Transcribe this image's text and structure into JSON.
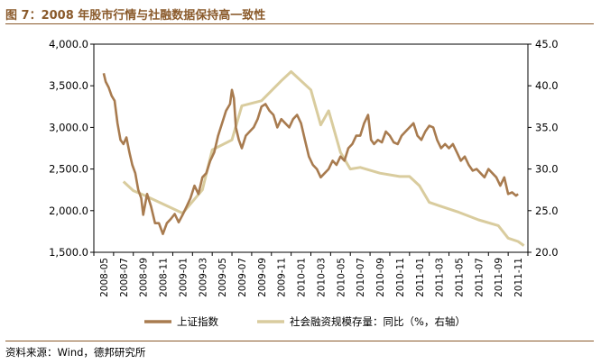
{
  "title": "图 7：2008 年股市行情与社融数据保持高一致性",
  "source": "资料来源：Wind，德邦研究所",
  "colors": {
    "shanghai": "#a87b4f",
    "social": "#d9cc9e",
    "accent": "#8a5a2b"
  },
  "chart_data": {
    "type": "line",
    "title": "图 7：2008 年股市行情与社融数据保持高一致性",
    "x_categories": [
      "2008-05",
      "2008-07",
      "2008-09",
      "2008-11",
      "2009-01",
      "2009-03",
      "2009-05",
      "2009-07",
      "2009-09",
      "2009-11",
      "2010-01",
      "2010-03",
      "2010-05",
      "2010-07",
      "2010-09",
      "2010-11",
      "2011-01",
      "2011-03",
      "2011-05",
      "2011-07",
      "2011-09",
      "2011-11"
    ],
    "left_axis": {
      "min": 1500,
      "max": 4000,
      "ticks": [
        "1,500.0",
        "2,000.0",
        "2,500.0",
        "3,000.0",
        "3,500.0",
        "4,000.0"
      ]
    },
    "right_axis": {
      "min": 20,
      "max": 45,
      "ticks": [
        "20.0",
        "25.0",
        "30.0",
        "35.0",
        "40.0",
        "45.0"
      ]
    },
    "series": [
      {
        "name": "上证指数",
        "axis": "left",
        "points": [
          [
            0,
            3650
          ],
          [
            0.1,
            3550
          ],
          [
            0.25,
            3480
          ],
          [
            0.4,
            3380
          ],
          [
            0.55,
            3320
          ],
          [
            0.7,
            3050
          ],
          [
            0.85,
            2850
          ],
          [
            1.0,
            2800
          ],
          [
            1.15,
            2880
          ],
          [
            1.3,
            2700
          ],
          [
            1.45,
            2550
          ],
          [
            1.6,
            2450
          ],
          [
            1.75,
            2250
          ],
          [
            1.9,
            2150
          ],
          [
            2.0,
            1950
          ],
          [
            2.2,
            2200
          ],
          [
            2.4,
            2050
          ],
          [
            2.6,
            1850
          ],
          [
            2.8,
            1850
          ],
          [
            3.0,
            1720
          ],
          [
            3.2,
            1850
          ],
          [
            3.4,
            1900
          ],
          [
            3.6,
            1960
          ],
          [
            3.8,
            1860
          ],
          [
            4.0,
            1950
          ],
          [
            4.2,
            2050
          ],
          [
            4.4,
            2150
          ],
          [
            4.6,
            2300
          ],
          [
            4.8,
            2200
          ],
          [
            5.0,
            2400
          ],
          [
            5.2,
            2450
          ],
          [
            5.4,
            2600
          ],
          [
            5.6,
            2700
          ],
          [
            5.8,
            2900
          ],
          [
            6.0,
            3050
          ],
          [
            6.2,
            3200
          ],
          [
            6.4,
            3280
          ],
          [
            6.5,
            3450
          ],
          [
            6.6,
            3350
          ],
          [
            6.7,
            3000
          ],
          [
            6.85,
            2850
          ],
          [
            7.0,
            2750
          ],
          [
            7.2,
            2900
          ],
          [
            7.4,
            2950
          ],
          [
            7.6,
            3000
          ],
          [
            7.8,
            3100
          ],
          [
            8.0,
            3250
          ],
          [
            8.2,
            3280
          ],
          [
            8.4,
            3200
          ],
          [
            8.6,
            3150
          ],
          [
            8.8,
            3000
          ],
          [
            9.0,
            3100
          ],
          [
            9.2,
            3050
          ],
          [
            9.4,
            3000
          ],
          [
            9.6,
            3100
          ],
          [
            9.8,
            3150
          ],
          [
            10.0,
            3050
          ],
          [
            10.2,
            2850
          ],
          [
            10.4,
            2650
          ],
          [
            10.6,
            2550
          ],
          [
            10.8,
            2500
          ],
          [
            11.0,
            2400
          ],
          [
            11.2,
            2450
          ],
          [
            11.4,
            2500
          ],
          [
            11.6,
            2600
          ],
          [
            11.8,
            2550
          ],
          [
            12.0,
            2650
          ],
          [
            12.2,
            2600
          ],
          [
            12.4,
            2750
          ],
          [
            12.6,
            2800
          ],
          [
            12.8,
            2900
          ],
          [
            13.0,
            2900
          ],
          [
            13.2,
            3050
          ],
          [
            13.4,
            3150
          ],
          [
            13.55,
            2850
          ],
          [
            13.7,
            2800
          ],
          [
            13.9,
            2850
          ],
          [
            14.1,
            2820
          ],
          [
            14.3,
            2950
          ],
          [
            14.5,
            2900
          ],
          [
            14.7,
            2820
          ],
          [
            14.9,
            2800
          ],
          [
            15.1,
            2900
          ],
          [
            15.3,
            2950
          ],
          [
            15.5,
            3000
          ],
          [
            15.7,
            3050
          ],
          [
            15.9,
            2900
          ],
          [
            16.1,
            2850
          ],
          [
            16.3,
            2950
          ],
          [
            16.5,
            3020
          ],
          [
            16.7,
            3000
          ],
          [
            16.9,
            2850
          ],
          [
            17.1,
            2750
          ],
          [
            17.3,
            2800
          ],
          [
            17.5,
            2750
          ],
          [
            17.7,
            2800
          ],
          [
            17.9,
            2700
          ],
          [
            18.1,
            2600
          ],
          [
            18.3,
            2650
          ],
          [
            18.5,
            2550
          ],
          [
            18.7,
            2480
          ],
          [
            18.9,
            2500
          ],
          [
            19.1,
            2450
          ],
          [
            19.3,
            2400
          ],
          [
            19.5,
            2500
          ],
          [
            19.7,
            2450
          ],
          [
            19.9,
            2400
          ],
          [
            20.1,
            2300
          ],
          [
            20.3,
            2400
          ],
          [
            20.5,
            2200
          ],
          [
            20.7,
            2220
          ],
          [
            20.9,
            2180
          ],
          [
            21.0,
            2200
          ]
        ]
      },
      {
        "name": "社会融资规模存量：同比（%，右轴）",
        "axis": "right",
        "points": [
          [
            1.0,
            28.5
          ],
          [
            1.5,
            27.4
          ],
          [
            2.0,
            26.9
          ],
          [
            3.0,
            25.8
          ],
          [
            4.0,
            24.7
          ],
          [
            5.0,
            27.5
          ],
          [
            5.5,
            32.3
          ],
          [
            6.5,
            33.5
          ],
          [
            7.0,
            37.6
          ],
          [
            8.0,
            38.2
          ],
          [
            9.0,
            40.6
          ],
          [
            9.5,
            41.7
          ],
          [
            10.5,
            39.5
          ],
          [
            11.0,
            35.3
          ],
          [
            11.4,
            37.0
          ],
          [
            12.0,
            32.0
          ],
          [
            12.5,
            30.0
          ],
          [
            13.0,
            30.2
          ],
          [
            14.0,
            29.5
          ],
          [
            15.0,
            29.1
          ],
          [
            15.5,
            29.1
          ],
          [
            16.0,
            28.0
          ],
          [
            16.5,
            26.0
          ],
          [
            17.0,
            25.6
          ],
          [
            18.0,
            24.8
          ],
          [
            19.0,
            23.9
          ],
          [
            20.0,
            23.2
          ],
          [
            20.5,
            21.7
          ],
          [
            21.0,
            21.3
          ],
          [
            21.3,
            20.8
          ]
        ]
      }
    ],
    "legend": [
      "上证指数",
      "社会融资规模存量：同比（%，右轴）"
    ],
    "legend_position": "bottom"
  }
}
